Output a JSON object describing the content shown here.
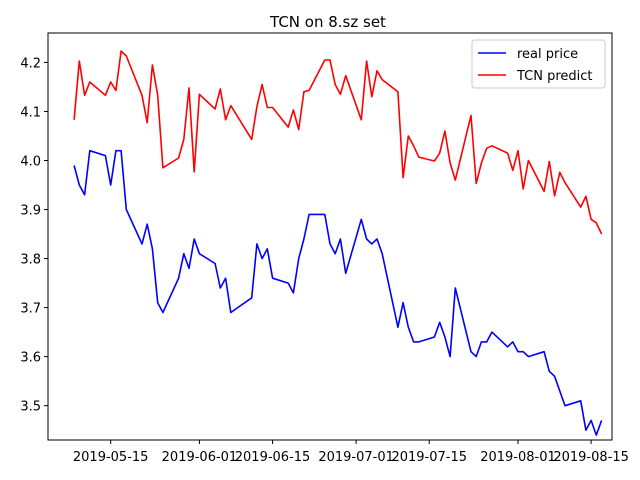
{
  "chart_data": {
    "type": "line",
    "title": "TCN on 8.sz set",
    "xlabel": "",
    "ylabel": "",
    "x_ticks": [
      "2019-05-15",
      "2019-06-01",
      "2019-06-15",
      "2019-07-01",
      "2019-07-15",
      "2019-08-01",
      "2019-08-15"
    ],
    "y_ticks": [
      "3.5",
      "3.6",
      "3.7",
      "3.8",
      "3.9",
      "4.0",
      "4.1",
      "4.2"
    ],
    "xlim": [
      "2019-05-03",
      "2019-08-19"
    ],
    "ylim": [
      3.43,
      4.26
    ],
    "legend_position": "upper-right",
    "grid": false,
    "series": [
      {
        "name": "real price",
        "color": "#0000ff",
        "x": [
          "2019-05-08",
          "2019-05-09",
          "2019-05-10",
          "2019-05-11",
          "2019-05-14",
          "2019-05-15",
          "2019-05-16",
          "2019-05-17",
          "2019-05-18",
          "2019-05-21",
          "2019-05-22",
          "2019-05-23",
          "2019-05-24",
          "2019-05-25",
          "2019-05-28",
          "2019-05-29",
          "2019-05-30",
          "2019-05-31",
          "2019-06-01",
          "2019-06-04",
          "2019-06-05",
          "2019-06-06",
          "2019-06-07",
          "2019-06-11",
          "2019-06-12",
          "2019-06-13",
          "2019-06-14",
          "2019-06-15",
          "2019-06-18",
          "2019-06-19",
          "2019-06-20",
          "2019-06-21",
          "2019-06-22",
          "2019-06-25",
          "2019-06-26",
          "2019-06-27",
          "2019-06-28",
          "2019-06-29",
          "2019-07-02",
          "2019-07-03",
          "2019-07-04",
          "2019-07-05",
          "2019-07-06",
          "2019-07-09",
          "2019-07-10",
          "2019-07-11",
          "2019-07-12",
          "2019-07-13",
          "2019-07-16",
          "2019-07-17",
          "2019-07-18",
          "2019-07-19",
          "2019-07-20",
          "2019-07-23",
          "2019-07-24",
          "2019-07-25",
          "2019-07-26",
          "2019-07-27",
          "2019-07-30",
          "2019-07-31",
          "2019-08-01",
          "2019-08-02",
          "2019-08-03",
          "2019-08-06",
          "2019-08-07",
          "2019-08-08",
          "2019-08-09",
          "2019-08-10",
          "2019-08-13",
          "2019-08-14",
          "2019-08-15",
          "2019-08-16",
          "2019-08-17"
        ],
        "values": [
          3.99,
          3.95,
          3.93,
          4.02,
          4.01,
          3.95,
          4.02,
          4.02,
          3.9,
          3.83,
          3.87,
          3.82,
          3.71,
          3.69,
          3.76,
          3.81,
          3.78,
          3.84,
          3.81,
          3.79,
          3.74,
          3.76,
          3.69,
          3.72,
          3.83,
          3.8,
          3.82,
          3.76,
          3.75,
          3.73,
          3.8,
          3.84,
          3.89,
          3.89,
          3.83,
          3.81,
          3.84,
          3.77,
          3.88,
          3.84,
          3.83,
          3.84,
          3.81,
          3.66,
          3.71,
          3.66,
          3.63,
          3.63,
          3.64,
          3.67,
          3.64,
          3.6,
          3.74,
          3.61,
          3.6,
          3.63,
          3.63,
          3.65,
          3.62,
          3.63,
          3.61,
          3.61,
          3.6,
          3.61,
          3.57,
          3.56,
          3.53,
          3.5,
          3.51,
          3.45,
          3.47,
          3.44,
          3.47
        ]
      },
      {
        "name": "TCN predict",
        "color": "#ff0000",
        "x": [
          "2019-05-08",
          "2019-05-09",
          "2019-05-10",
          "2019-05-11",
          "2019-05-14",
          "2019-05-15",
          "2019-05-16",
          "2019-05-17",
          "2019-05-18",
          "2019-05-21",
          "2019-05-22",
          "2019-05-23",
          "2019-05-24",
          "2019-05-25",
          "2019-05-28",
          "2019-05-29",
          "2019-05-30",
          "2019-05-31",
          "2019-06-01",
          "2019-06-04",
          "2019-06-05",
          "2019-06-06",
          "2019-06-07",
          "2019-06-11",
          "2019-06-12",
          "2019-06-13",
          "2019-06-14",
          "2019-06-15",
          "2019-06-18",
          "2019-06-19",
          "2019-06-20",
          "2019-06-21",
          "2019-06-22",
          "2019-06-25",
          "2019-06-26",
          "2019-06-27",
          "2019-06-28",
          "2019-06-29",
          "2019-07-02",
          "2019-07-03",
          "2019-07-04",
          "2019-07-05",
          "2019-07-06",
          "2019-07-09",
          "2019-07-10",
          "2019-07-11",
          "2019-07-12",
          "2019-07-13",
          "2019-07-16",
          "2019-07-17",
          "2019-07-18",
          "2019-07-19",
          "2019-07-20",
          "2019-07-23",
          "2019-07-24",
          "2019-07-25",
          "2019-07-26",
          "2019-07-27",
          "2019-07-30",
          "2019-07-31",
          "2019-08-01",
          "2019-08-02",
          "2019-08-03",
          "2019-08-06",
          "2019-08-07",
          "2019-08-08",
          "2019-08-09",
          "2019-08-10",
          "2019-08-13",
          "2019-08-14",
          "2019-08-15",
          "2019-08-16",
          "2019-08-17"
        ],
        "values": [
          4.083,
          4.203,
          4.133,
          4.16,
          4.133,
          4.16,
          4.143,
          4.223,
          4.213,
          4.133,
          4.077,
          4.195,
          4.133,
          3.985,
          4.005,
          4.043,
          4.148,
          3.977,
          4.135,
          4.105,
          4.146,
          4.083,
          4.112,
          4.043,
          4.11,
          4.155,
          4.108,
          4.108,
          4.068,
          4.103,
          4.063,
          4.14,
          4.143,
          4.205,
          4.205,
          4.155,
          4.135,
          4.173,
          4.083,
          4.203,
          4.13,
          4.183,
          4.165,
          4.14,
          3.965,
          4.05,
          4.03,
          4.007,
          3.999,
          4.015,
          4.06,
          3.995,
          3.96,
          4.092,
          3.953,
          3.995,
          4.025,
          4.03,
          4.015,
          3.98,
          4.02,
          3.942,
          4.0,
          3.937,
          3.998,
          3.928,
          3.976,
          3.955,
          3.905,
          3.927,
          3.88,
          3.873,
          3.85
        ]
      }
    ]
  }
}
